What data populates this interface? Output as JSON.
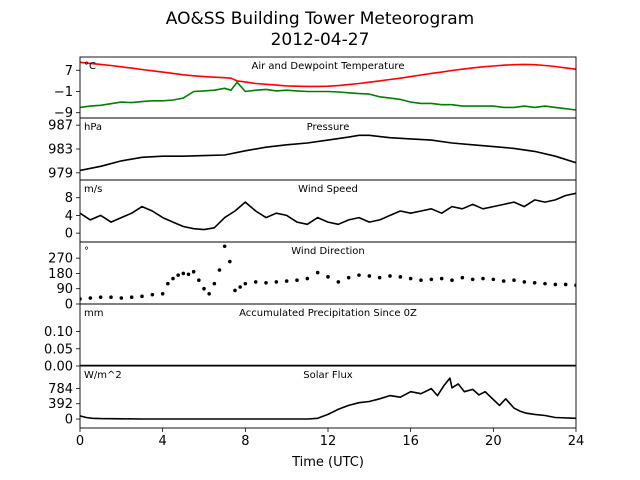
{
  "figure": {
    "title_line1": "AO&SS Building Tower Meteorogram",
    "title_line2": "2012-04-27",
    "xlabel": "Time (UTC)",
    "xticks": [
      "0",
      "4",
      "8",
      "12",
      "16",
      "20",
      "24"
    ]
  },
  "chart_data": [
    {
      "type": "line",
      "title": "Air and Dewpoint Temperature",
      "units": "°C",
      "ylim": [
        -11,
        12
      ],
      "yticks": [
        "7",
        "−1",
        "−9"
      ],
      "ytick_values": [
        7,
        -1,
        -9
      ],
      "series": [
        {
          "color": "#ff0000",
          "x": [
            0,
            0.5,
            1,
            1.5,
            2,
            2.5,
            3,
            3.5,
            4,
            4.5,
            5,
            5.5,
            6,
            6.5,
            7,
            7.3,
            7.6,
            8,
            8.5,
            9,
            9.5,
            10,
            10.5,
            11,
            11.5,
            12,
            12.5,
            13,
            13.5,
            14,
            14.5,
            15,
            15.5,
            16,
            16.5,
            17,
            17.5,
            18,
            18.5,
            19,
            19.5,
            20,
            20.5,
            21,
            21.5,
            22,
            22.5,
            23,
            23.5,
            24
          ],
          "y": [
            10,
            9.6,
            9.2,
            8.8,
            8.3,
            7.8,
            7.3,
            6.8,
            6.3,
            5.8,
            5.3,
            4.9,
            4.6,
            4.4,
            4.2,
            4.0,
            3.0,
            2.6,
            2.0,
            1.7,
            1.4,
            1.1,
            1.0,
            0.9,
            0.9,
            1.0,
            1.2,
            1.6,
            2.0,
            2.5,
            3.0,
            3.5,
            4.0,
            4.6,
            5.2,
            5.8,
            6.3,
            6.9,
            7.4,
            7.9,
            8.3,
            8.6,
            8.9,
            9.1,
            9.2,
            9.1,
            8.8,
            8.4,
            7.9,
            7.4
          ]
        },
        {
          "color": "#008000",
          "x": [
            0,
            0.5,
            1,
            1.5,
            2,
            2.5,
            3,
            3.5,
            4,
            4.5,
            5,
            5.5,
            6,
            6.5,
            7,
            7.3,
            7.6,
            8,
            8.5,
            9,
            9.5,
            10,
            10.5,
            11,
            11.5,
            12,
            12.5,
            13,
            13.5,
            14,
            14.5,
            15,
            15.5,
            16,
            16.5,
            17,
            17.5,
            18,
            18.5,
            19,
            19.5,
            20,
            20.5,
            21,
            21.5,
            22,
            22.5,
            23,
            23.5,
            24
          ],
          "y": [
            -7.0,
            -6.5,
            -6.2,
            -5.6,
            -5.0,
            -5.2,
            -4.8,
            -4.5,
            -4.5,
            -4.2,
            -3.5,
            -1.0,
            -0.8,
            -0.5,
            0.2,
            -0.5,
            2.5,
            -1.0,
            -0.5,
            -0.2,
            -0.8,
            -0.5,
            -0.8,
            -1.0,
            -1.0,
            -1.0,
            -1.2,
            -1.5,
            -1.8,
            -2.0,
            -3.0,
            -3.5,
            -4.0,
            -5.0,
            -5.5,
            -5.5,
            -6.0,
            -6.0,
            -6.5,
            -6.5,
            -6.5,
            -6.5,
            -7.0,
            -7.0,
            -6.5,
            -7.0,
            -6.5,
            -7.0,
            -7.5,
            -8.0
          ]
        }
      ]
    },
    {
      "type": "line",
      "title": "Pressure",
      "units": "hPa",
      "ylim": [
        977.8,
        988.2
      ],
      "yticks": [
        "987",
        "983",
        "979"
      ],
      "ytick_values": [
        987,
        983,
        979
      ],
      "series": [
        {
          "color": "#000000",
          "x": [
            0,
            1,
            2,
            3,
            4,
            5,
            6,
            7,
            8,
            9,
            10,
            11,
            12,
            13,
            13.5,
            14,
            15,
            16,
            17,
            18,
            19,
            20,
            21,
            22,
            23,
            24
          ],
          "y": [
            979.4,
            980.1,
            981.0,
            981.6,
            981.8,
            981.8,
            981.9,
            982.0,
            982.7,
            983.3,
            983.7,
            984.0,
            984.5,
            985.0,
            985.3,
            985.3,
            984.9,
            984.7,
            984.5,
            984.0,
            983.7,
            983.4,
            983.1,
            982.6,
            981.8,
            980.7
          ]
        }
      ]
    },
    {
      "type": "line",
      "title": "Wind Speed",
      "units": "m/s",
      "ylim": [
        -2,
        12
      ],
      "yticks": [
        "8",
        "4",
        "0"
      ],
      "ytick_values": [
        8,
        4,
        0
      ],
      "series": [
        {
          "color": "#000000",
          "x": [
            0,
            0.5,
            1,
            1.5,
            2,
            2.5,
            3,
            3.5,
            4,
            4.5,
            5,
            5.5,
            6,
            6.5,
            7,
            7.5,
            8,
            8.5,
            9,
            9.5,
            10,
            10.5,
            11,
            11.5,
            12,
            12.5,
            13,
            13.5,
            14,
            14.5,
            15,
            15.5,
            16,
            16.5,
            17,
            17.5,
            18,
            18.5,
            19,
            19.5,
            20,
            20.5,
            21,
            21.5,
            22,
            22.5,
            23,
            23.5,
            24
          ],
          "y": [
            4.5,
            3.0,
            4.0,
            2.5,
            3.5,
            4.5,
            6.0,
            5.0,
            3.5,
            2.5,
            1.5,
            1.0,
            0.8,
            1.2,
            3.5,
            5.0,
            7.0,
            5.0,
            3.5,
            4.5,
            4.0,
            2.5,
            2.0,
            3.5,
            2.5,
            2.0,
            3.0,
            3.5,
            2.5,
            3.0,
            4.0,
            5.0,
            4.5,
            5.0,
            5.5,
            4.5,
            6.0,
            5.5,
            6.5,
            5.5,
            6.0,
            6.5,
            7.0,
            6.0,
            7.5,
            7.0,
            7.5,
            8.5,
            9.0
          ]
        }
      ]
    },
    {
      "type": "scatter",
      "title": "Wind Direction",
      "units": "°",
      "ylim": [
        0,
        365
      ],
      "yticks": [
        "270",
        "180",
        "90",
        "0"
      ],
      "ytick_values": [
        270,
        180,
        90,
        0
      ],
      "series": [
        {
          "color": "#000000",
          "x": [
            0,
            0.5,
            1,
            1.5,
            2,
            2.5,
            3,
            3.5,
            4,
            4.25,
            4.5,
            4.75,
            5,
            5.25,
            5.5,
            5.75,
            6,
            6.25,
            6.5,
            6.75,
            7,
            7.25,
            7.5,
            7.75,
            8,
            8.5,
            9,
            9.5,
            10,
            10.5,
            11,
            11.5,
            12,
            12.5,
            13,
            13.5,
            14,
            14.5,
            15,
            15.5,
            16,
            16.5,
            17,
            17.5,
            18,
            18.5,
            19,
            19.5,
            20,
            20.5,
            21,
            21.5,
            22,
            22.5,
            23,
            23.5,
            24
          ],
          "y": [
            30,
            35,
            40,
            40,
            35,
            40,
            45,
            55,
            60,
            120,
            150,
            170,
            180,
            175,
            190,
            140,
            90,
            60,
            120,
            200,
            340,
            250,
            80,
            100,
            120,
            130,
            125,
            130,
            135,
            140,
            150,
            185,
            160,
            130,
            155,
            170,
            165,
            155,
            165,
            160,
            150,
            140,
            145,
            150,
            140,
            155,
            145,
            150,
            145,
            135,
            140,
            130,
            125,
            120,
            115,
            115,
            110
          ]
        }
      ]
    },
    {
      "type": "line",
      "title": "Accumulated Precipitation Since 0Z",
      "units": "mm",
      "ylim": [
        0,
        0.18
      ],
      "yticks": [
        "0.10",
        "0.05",
        "0.00"
      ],
      "ytick_values": [
        0.1,
        0.05,
        0.0
      ],
      "series": [
        {
          "color": "#000000",
          "x": [
            0,
            24
          ],
          "y": [
            0,
            0
          ]
        }
      ]
    },
    {
      "type": "line",
      "title": "Solar Flux",
      "units": "W/m^2",
      "ylim": [
        -230,
        1360
      ],
      "yticks": [
        "784",
        "392",
        "0"
      ],
      "ytick_values": [
        784,
        392,
        0
      ],
      "series": [
        {
          "color": "#000000",
          "x": [
            0,
            0.3,
            0.6,
            1,
            2,
            3,
            4,
            5,
            6,
            7,
            8,
            9,
            10,
            11,
            11.5,
            12,
            12.5,
            13,
            13.5,
            14,
            14.5,
            15,
            15.5,
            16,
            16.5,
            17,
            17.3,
            17.6,
            17.9,
            18,
            18.3,
            18.6,
            19,
            19.3,
            19.6,
            20,
            20.3,
            20.6,
            21,
            21.3,
            21.6,
            22,
            22.5,
            23,
            24
          ],
          "y": [
            80,
            40,
            20,
            10,
            5,
            0,
            0,
            0,
            0,
            0,
            0,
            0,
            0,
            0,
            20,
            120,
            250,
            350,
            420,
            450,
            520,
            600,
            560,
            700,
            650,
            780,
            600,
            850,
            1050,
            800,
            900,
            700,
            760,
            620,
            700,
            500,
            350,
            520,
            280,
            200,
            150,
            120,
            90,
            40,
            20
          ]
        }
      ]
    }
  ]
}
